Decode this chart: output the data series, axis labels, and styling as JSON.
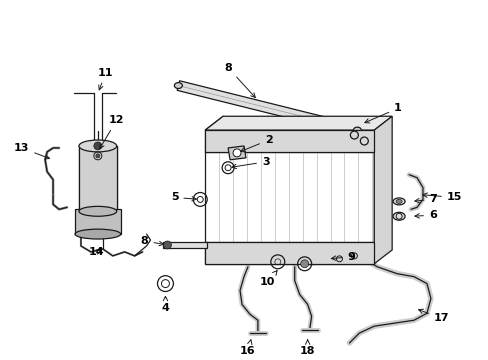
{
  "background_color": "#ffffff",
  "line_color": "#1a1a1a",
  "figsize": [
    4.89,
    3.6
  ],
  "dpi": 100,
  "lw": 0.9
}
